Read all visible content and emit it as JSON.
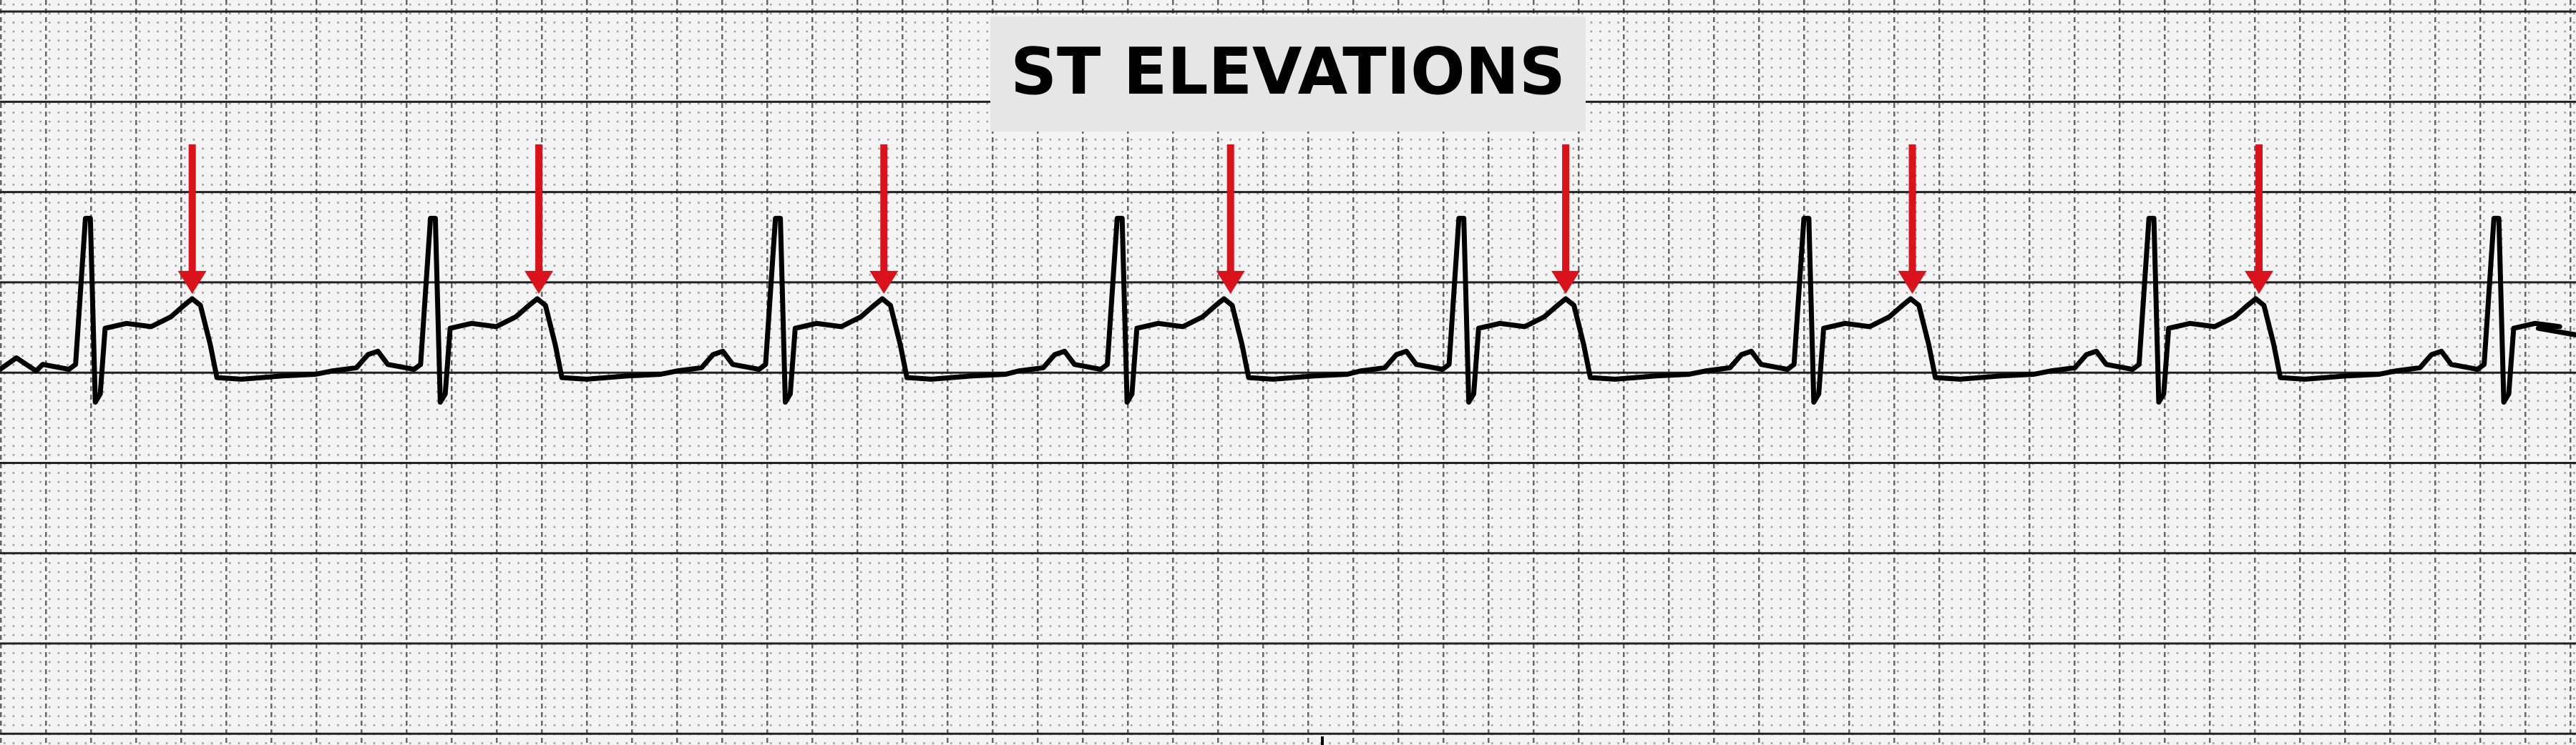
{
  "title": "ST ELEVATIONS"
}
